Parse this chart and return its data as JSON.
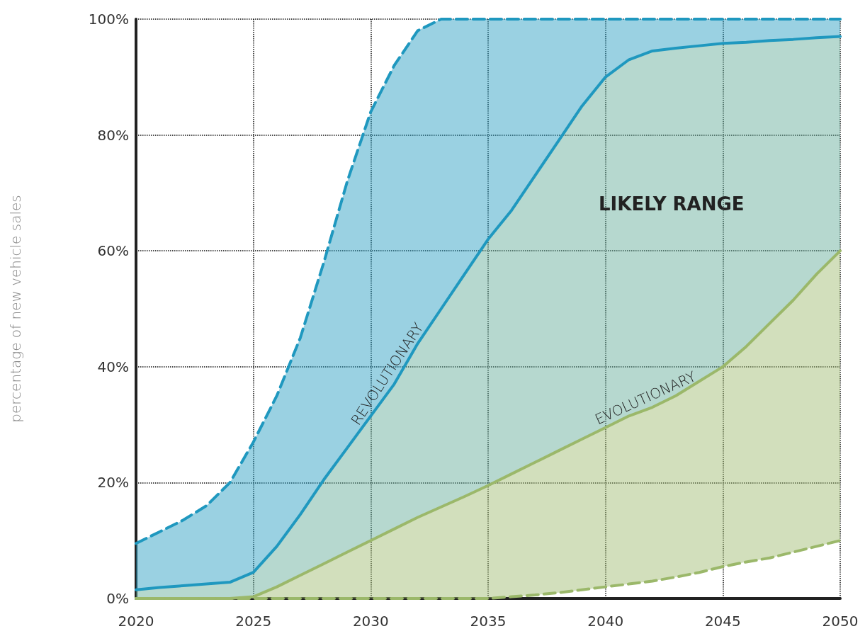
{
  "chart_data": {
    "type": "line",
    "ylabel": "percentage of new vehicle sales",
    "x": [
      2020,
      2021,
      2022,
      2023,
      2024,
      2025,
      2026,
      2027,
      2028,
      2029,
      2030,
      2031,
      2032,
      2033,
      2034,
      2035,
      2036,
      2037,
      2038,
      2039,
      2040,
      2041,
      2042,
      2043,
      2044,
      2045,
      2046,
      2047,
      2048,
      2049,
      2050
    ],
    "series": [
      {
        "type": "area",
        "color": "#1f98bf",
        "line_style": "dashed",
        "values": [
          9.5,
          11.5,
          13.5,
          16,
          20,
          27,
          35,
          45,
          58,
          72,
          84,
          92,
          98,
          100,
          100,
          100,
          100,
          100,
          100,
          100,
          100,
          100,
          100,
          100,
          100,
          100,
          100,
          100,
          100,
          100,
          100
        ]
      },
      {
        "type": "area",
        "name": "REVOLUTIONARY",
        "color": "#1f98bf",
        "line_style": "solid",
        "values": [
          1.5,
          1.9,
          2.2,
          2.5,
          2.8,
          4.5,
          9,
          14.5,
          20.5,
          26,
          31.5,
          37,
          44,
          50,
          56,
          62,
          67,
          73,
          79,
          85,
          90,
          93,
          94.5,
          95,
          95.4,
          95.8,
          96,
          96.3,
          96.5,
          96.8,
          97
        ]
      },
      {
        "type": "area",
        "name": "EVOLUTIONARY",
        "color": "#9bb86a",
        "line_style": "solid",
        "values": [
          0,
          0,
          0,
          0,
          0,
          0.3,
          2,
          4,
          6,
          8,
          10,
          12,
          14,
          15.8,
          17.6,
          19.5,
          21.5,
          23.5,
          25.5,
          27.5,
          29.5,
          31.5,
          33,
          35,
          37.5,
          40,
          43.5,
          47.5,
          51.5,
          56,
          60
        ]
      },
      {
        "color": "#9bb86a",
        "line_style": "dashed",
        "values": [
          0,
          0,
          0,
          0,
          0,
          0,
          0,
          0,
          0,
          0,
          0,
          0,
          0,
          0,
          0,
          0,
          0.3,
          0.6,
          1,
          1.5,
          2,
          2.5,
          3,
          3.7,
          4.5,
          5.5,
          6.3,
          7,
          8,
          9,
          10
        ]
      }
    ],
    "annotations": [
      "LIKELY RANGE"
    ],
    "xlim": [
      2020,
      2050
    ],
    "xticks": [
      2020,
      2025,
      2030,
      2035,
      2040,
      2045,
      2050
    ],
    "ylim": [
      0,
      100
    ],
    "yticks": [
      {
        "value": 0,
        "label": "0%"
      },
      {
        "value": 20,
        "label": "20%"
      },
      {
        "value": 40,
        "label": "40%"
      },
      {
        "value": 60,
        "label": "60%"
      },
      {
        "value": 80,
        "label": "80%"
      },
      {
        "value": 100,
        "label": "100%"
      }
    ],
    "grid": true,
    "legend": false,
    "marker": "none"
  }
}
